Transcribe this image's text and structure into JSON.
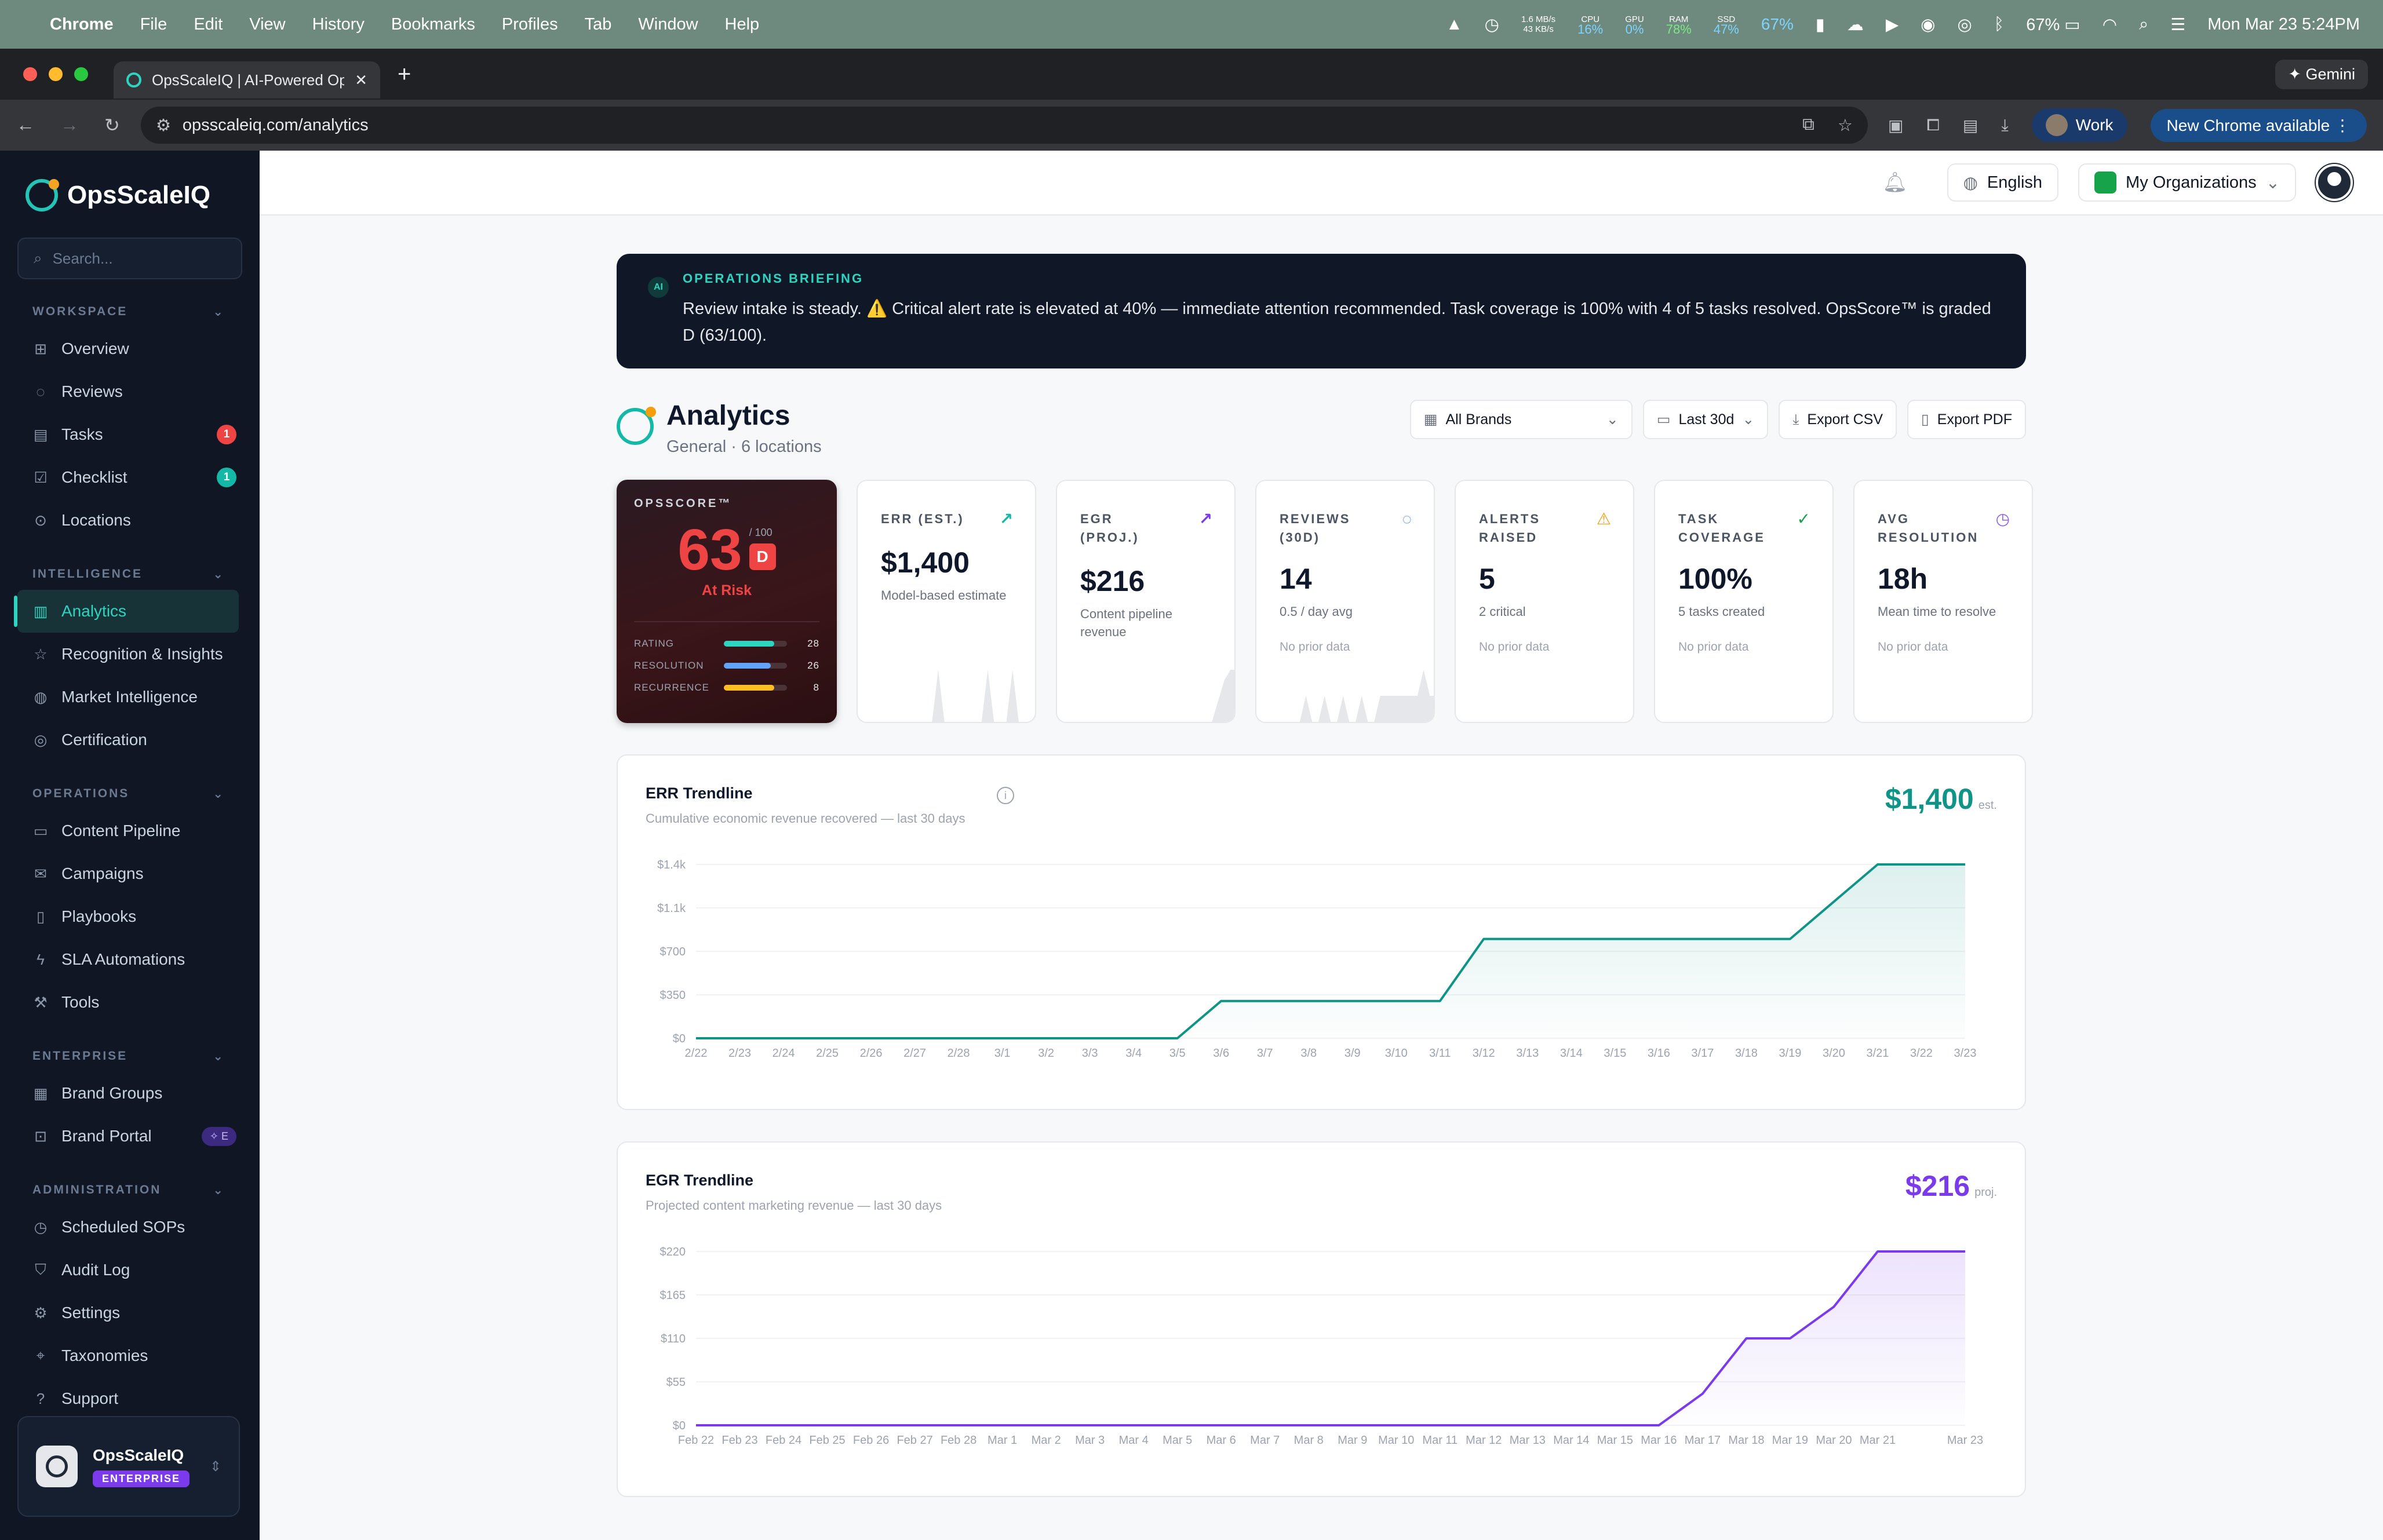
{
  "os_menubar": {
    "app": "Chrome",
    "menus": [
      "File",
      "Edit",
      "View",
      "History",
      "Bookmarks",
      "Profiles",
      "Tab",
      "Window",
      "Help"
    ],
    "net_up": "1.6 MB/s",
    "net_down": "43 KB/s",
    "cpu_label": "CPU",
    "cpu": "16%",
    "gpu_label": "GPU",
    "gpu": "0%",
    "ram_label": "RAM",
    "ram": "78%",
    "ssd_label": "SSD",
    "ssd": "47%",
    "misc_pct": "67%",
    "battery": "67%",
    "clock": "Mon Mar 23  5:24PM"
  },
  "browser": {
    "tab_title": "OpsScaleIQ | AI-Powered Op",
    "gemini_label": "Gemini",
    "url": "opsscaleiq.com/analytics",
    "profile_label": "Work",
    "update_label": "New Chrome available"
  },
  "sidebar": {
    "brand": "OpsScaleIQ",
    "search_placeholder": "Search...",
    "sections": [
      {
        "title": "WORKSPACE",
        "items": [
          {
            "label": "Overview",
            "icon": "grid-icon"
          },
          {
            "label": "Reviews",
            "icon": "chat-icon"
          },
          {
            "label": "Tasks",
            "icon": "clipboard-icon",
            "badge": "1",
            "badge_color": "#ef4444"
          },
          {
            "label": "Checklist",
            "icon": "checklist-icon",
            "badge": "1",
            "badge_color": "#14b8a6"
          },
          {
            "label": "Locations",
            "icon": "pin-icon"
          }
        ]
      },
      {
        "title": "INTELLIGENCE",
        "items": [
          {
            "label": "Analytics",
            "icon": "bar-chart-icon",
            "active": true
          },
          {
            "label": "Recognition & Insights",
            "icon": "star-icon"
          },
          {
            "label": "Market Intelligence",
            "icon": "globe-icon"
          },
          {
            "label": "Certification",
            "icon": "award-icon"
          }
        ]
      },
      {
        "title": "OPERATIONS",
        "items": [
          {
            "label": "Content Pipeline",
            "icon": "document-icon"
          },
          {
            "label": "Campaigns",
            "icon": "mail-icon"
          },
          {
            "label": "Playbooks",
            "icon": "book-icon"
          },
          {
            "label": "SLA Automations",
            "icon": "bolt-icon"
          },
          {
            "label": "Tools",
            "icon": "wrench-icon"
          }
        ]
      },
      {
        "title": "ENTERPRISE",
        "items": [
          {
            "label": "Brand Groups",
            "icon": "building-icon"
          },
          {
            "label": "Brand Portal",
            "icon": "portal-icon",
            "tag": "E"
          }
        ]
      },
      {
        "title": "ADMINISTRATION",
        "items": [
          {
            "label": "Scheduled SOPs",
            "icon": "clock-icon"
          },
          {
            "label": "Audit Log",
            "icon": "shield-icon"
          },
          {
            "label": "Settings",
            "icon": "gear-icon"
          },
          {
            "label": "Taxonomies",
            "icon": "tag-icon"
          },
          {
            "label": "Support",
            "icon": "help-icon"
          }
        ]
      }
    ],
    "org": {
      "name": "OpsScaleIQ",
      "plan": "ENTERPRISE"
    }
  },
  "topbar": {
    "language": "English",
    "org_selector": "My Organizations"
  },
  "briefing": {
    "badge": "AI",
    "title": "OPERATIONS BRIEFING",
    "text": "Review intake is steady. ⚠️ Critical alert rate is elevated at 40% — immediate attention recommended. Task coverage is 100% with 4 of 5 tasks resolved. OpsScore™ is graded D (63/100)."
  },
  "page": {
    "title": "Analytics",
    "subtitle": "General · 6 locations",
    "brand_filter": "All Brands",
    "range_filter": "Last 30d",
    "export_csv": "Export CSV",
    "export_pdf": "Export PDF"
  },
  "opscore": {
    "title": "OPSSCORE™",
    "score": "63",
    "out_of": "/ 100",
    "grade": "D",
    "status": "At Risk",
    "bars": [
      {
        "label": "RATING",
        "value": 28,
        "max": 35,
        "color": "#2dd4bf"
      },
      {
        "label": "RESOLUTION",
        "value": 26,
        "max": 35,
        "color": "#60a5fa"
      },
      {
        "label": "RECURRENCE",
        "value": 8,
        "max": 10,
        "color": "#fbbf24"
      }
    ]
  },
  "kpis": [
    {
      "title": "ERR (EST.)",
      "value": "$1,400",
      "desc": "Model-based estimate",
      "note": "",
      "icon": "trend-up-icon",
      "icon_color": "#14b8a6",
      "spark": [
        0,
        0,
        0,
        0,
        0,
        0,
        0,
        0,
        0,
        0,
        0,
        0,
        0,
        1,
        0,
        0,
        0,
        0,
        0,
        0,
        0,
        1,
        0,
        0,
        0,
        1,
        0,
        0,
        0,
        0
      ]
    },
    {
      "title": "EGR (PROJ.)",
      "value": "$216",
      "desc": "Content pipeline revenue",
      "note": "",
      "icon": "trend-up-icon",
      "icon_color": "#7c3aed",
      "spark": [
        0,
        0,
        0,
        0,
        0,
        0,
        0,
        0,
        0,
        0,
        0,
        0,
        0,
        0,
        0,
        0,
        0,
        0,
        0,
        0,
        0,
        0,
        0,
        0,
        0,
        0,
        0.4,
        0.8,
        1,
        1
      ]
    },
    {
      "title": "REVIEWS (30D)",
      "value": "14",
      "desc": "0.5 / day avg",
      "note": "No prior data",
      "icon": "chat-icon",
      "icon_color": "#3b82f6",
      "spark": [
        0,
        0,
        0,
        0,
        0,
        0,
        0,
        0,
        0.5,
        0,
        0,
        0.5,
        0,
        0,
        0.5,
        0,
        0,
        0.5,
        0,
        0,
        0.5,
        0.5,
        0.5,
        0.5,
        0.5,
        0.5,
        0.5,
        1,
        0.5,
        0.5
      ]
    },
    {
      "title": "ALERTS RAISED",
      "value": "5",
      "desc": "2 critical",
      "note": "No prior data",
      "icon": "warning-icon",
      "icon_color": "#f59e0b",
      "spark": []
    },
    {
      "title": "TASK COVERAGE",
      "value": "100%",
      "desc": "5 tasks created",
      "note": "No prior data",
      "icon": "shield-check-icon",
      "icon_color": "#16a34a",
      "spark": []
    },
    {
      "title": "AVG RESOLUTION",
      "value": "18h",
      "desc": "Mean time to resolve",
      "note": "No prior data",
      "icon": "clock-icon",
      "icon_color": "#8b5cf6",
      "spark": []
    }
  ],
  "chart_data": [
    {
      "type": "area",
      "title": "ERR Trendline",
      "subtitle": "Cumulative economic revenue recovered — last 30 days",
      "headline": "$1,400",
      "headline_unit": "est.",
      "color": "#0f9488",
      "x": [
        "2/22",
        "2/23",
        "2/24",
        "2/25",
        "2/26",
        "2/27",
        "2/28",
        "3/1",
        "3/2",
        "3/3",
        "3/4",
        "3/5",
        "3/6",
        "3/7",
        "3/8",
        "3/9",
        "3/10",
        "3/11",
        "3/12",
        "3/13",
        "3/14",
        "3/15",
        "3/16",
        "3/17",
        "3/18",
        "3/19",
        "3/20",
        "3/21",
        "3/22",
        "3/23"
      ],
      "values": [
        0,
        0,
        0,
        0,
        0,
        0,
        0,
        0,
        0,
        0,
        0,
        0,
        300,
        300,
        300,
        300,
        300,
        300,
        800,
        800,
        800,
        800,
        800,
        800,
        800,
        800,
        1100,
        1400,
        1400,
        1400
      ],
      "yticks": [
        "$0",
        "$350",
        "$700",
        "$1.1k",
        "$1.4k"
      ],
      "ylim": [
        0,
        1400
      ]
    },
    {
      "type": "area",
      "title": "EGR Trendline",
      "subtitle": "Projected content marketing revenue — last 30 days",
      "headline": "$216",
      "headline_unit": "proj.",
      "color": "#7c3aed",
      "x": [
        "Feb 22",
        "Feb 23",
        "Feb 24",
        "Feb 25",
        "Feb 26",
        "Feb 27",
        "Feb 28",
        "Mar 1",
        "Mar 2",
        "Mar 3",
        "Mar 4",
        "Mar 5",
        "Mar 6",
        "Mar 7",
        "Mar 8",
        "Mar 9",
        "Mar 10",
        "Mar 11",
        "Mar 12",
        "Mar 13",
        "Mar 14",
        "Mar 15",
        "Mar 16",
        "Mar 17",
        "Mar 18",
        "Mar 19",
        "Mar 20",
        "Mar 21",
        "",
        "Mar 23"
      ],
      "values": [
        0,
        0,
        0,
        0,
        0,
        0,
        0,
        0,
        0,
        0,
        0,
        0,
        0,
        0,
        0,
        0,
        0,
        0,
        0,
        0,
        0,
        0,
        0,
        40,
        110,
        110,
        150,
        220,
        220,
        220
      ],
      "yticks": [
        "$0",
        "$55",
        "$110",
        "$165",
        "$220"
      ],
      "ylim": [
        0,
        220
      ]
    }
  ]
}
